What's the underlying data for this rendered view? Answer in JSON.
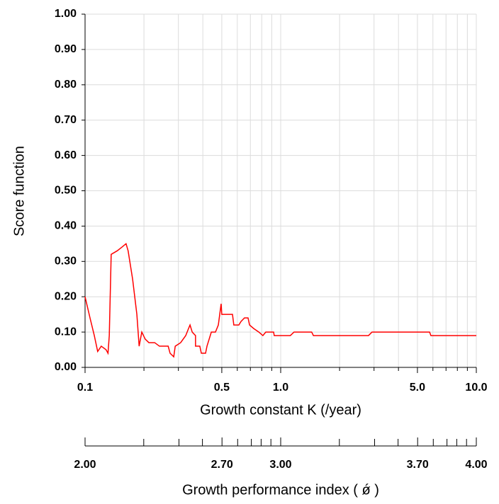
{
  "chart_data": {
    "type": "line",
    "ylabel": "Score function",
    "xlabel": "Growth constant K (/year)",
    "x2label": "Growth performance index ( ǿ )",
    "xscale": "log",
    "xlim": [
      0.1,
      10
    ],
    "xticks": [
      0.1,
      0.5,
      {
        "value": 1,
        "label": "1.0"
      },
      {
        "value": 5,
        "label": "5.0"
      },
      {
        "value": 10,
        "label": "10.0"
      }
    ],
    "xminor": [
      0.2,
      0.3,
      0.4,
      0.6,
      0.7,
      0.8,
      0.9,
      2,
      3,
      4,
      6,
      7,
      8,
      9
    ],
    "ylim": [
      0,
      1
    ],
    "yticks": [
      {
        "value": 0,
        "label": "0.00"
      },
      {
        "value": 0.1,
        "label": "0.10"
      },
      {
        "value": 0.2,
        "label": "0.20"
      },
      {
        "value": 0.3,
        "label": "0.30"
      },
      {
        "value": 0.4,
        "label": "0.40"
      },
      {
        "value": 0.5,
        "label": "0.50"
      },
      {
        "value": 0.6,
        "label": "0.60"
      },
      {
        "value": 0.7,
        "label": "0.70"
      },
      {
        "value": 0.8,
        "label": "0.80"
      },
      {
        "value": 0.9,
        "label": "0.90"
      },
      {
        "value": 1,
        "label": "1.00"
      }
    ],
    "x2lim": [
      2,
      4
    ],
    "x2ticks": [
      {
        "value": 2,
        "label": "2.00"
      },
      {
        "value": 2.7,
        "label": "2.70"
      },
      {
        "value": 3,
        "label": "3.00"
      },
      {
        "value": 3.7,
        "label": "3.70"
      },
      {
        "value": 4,
        "label": "4.00"
      }
    ],
    "x2minor": [
      2.3,
      2.48,
      2.6,
      2.78,
      2.85,
      2.9,
      2.95,
      3.3,
      3.48,
      3.6,
      3.78,
      3.85,
      3.9,
      3.95
    ],
    "grid": true,
    "series": [
      {
        "color": "#ff0000",
        "x": [
          0.1,
          0.106,
          0.1115,
          0.116,
          0.121,
          0.128,
          0.131,
          0.133,
          0.136,
          0.146,
          0.154,
          0.162,
          0.166,
          0.175,
          0.184,
          0.189,
          0.195,
          0.203,
          0.212,
          0.227,
          0.24,
          0.266,
          0.272,
          0.284,
          0.289,
          0.308,
          0.327,
          0.338,
          0.344,
          0.353,
          0.367,
          0.367,
          0.386,
          0.393,
          0.413,
          0.42,
          0.442,
          0.464,
          0.48,
          0.488,
          0.496,
          0.5,
          0.567,
          0.576,
          0.611,
          0.627,
          0.653,
          0.681,
          0.693,
          0.728,
          0.773,
          0.811,
          0.839,
          0.92,
          0.927,
          1.12,
          1.17,
          1.44,
          1.47,
          2.81,
          2.93,
          5.77,
          5.86,
          10
        ],
        "values": [
          0.2,
          0.14,
          0.09,
          0.045,
          0.06,
          0.05,
          0.04,
          0.09,
          0.32,
          0.33,
          0.34,
          0.35,
          0.33,
          0.25,
          0.15,
          0.06,
          0.1,
          0.08,
          0.07,
          0.07,
          0.06,
          0.06,
          0.04,
          0.03,
          0.06,
          0.07,
          0.09,
          0.11,
          0.12,
          0.1,
          0.09,
          0.06,
          0.06,
          0.04,
          0.04,
          0.06,
          0.1,
          0.1,
          0.12,
          0.15,
          0.18,
          0.15,
          0.15,
          0.12,
          0.12,
          0.13,
          0.14,
          0.14,
          0.12,
          0.11,
          0.1,
          0.09,
          0.1,
          0.1,
          0.09,
          0.09,
          0.1,
          0.1,
          0.09,
          0.09,
          0.1,
          0.1,
          0.09,
          0.09
        ]
      }
    ]
  }
}
